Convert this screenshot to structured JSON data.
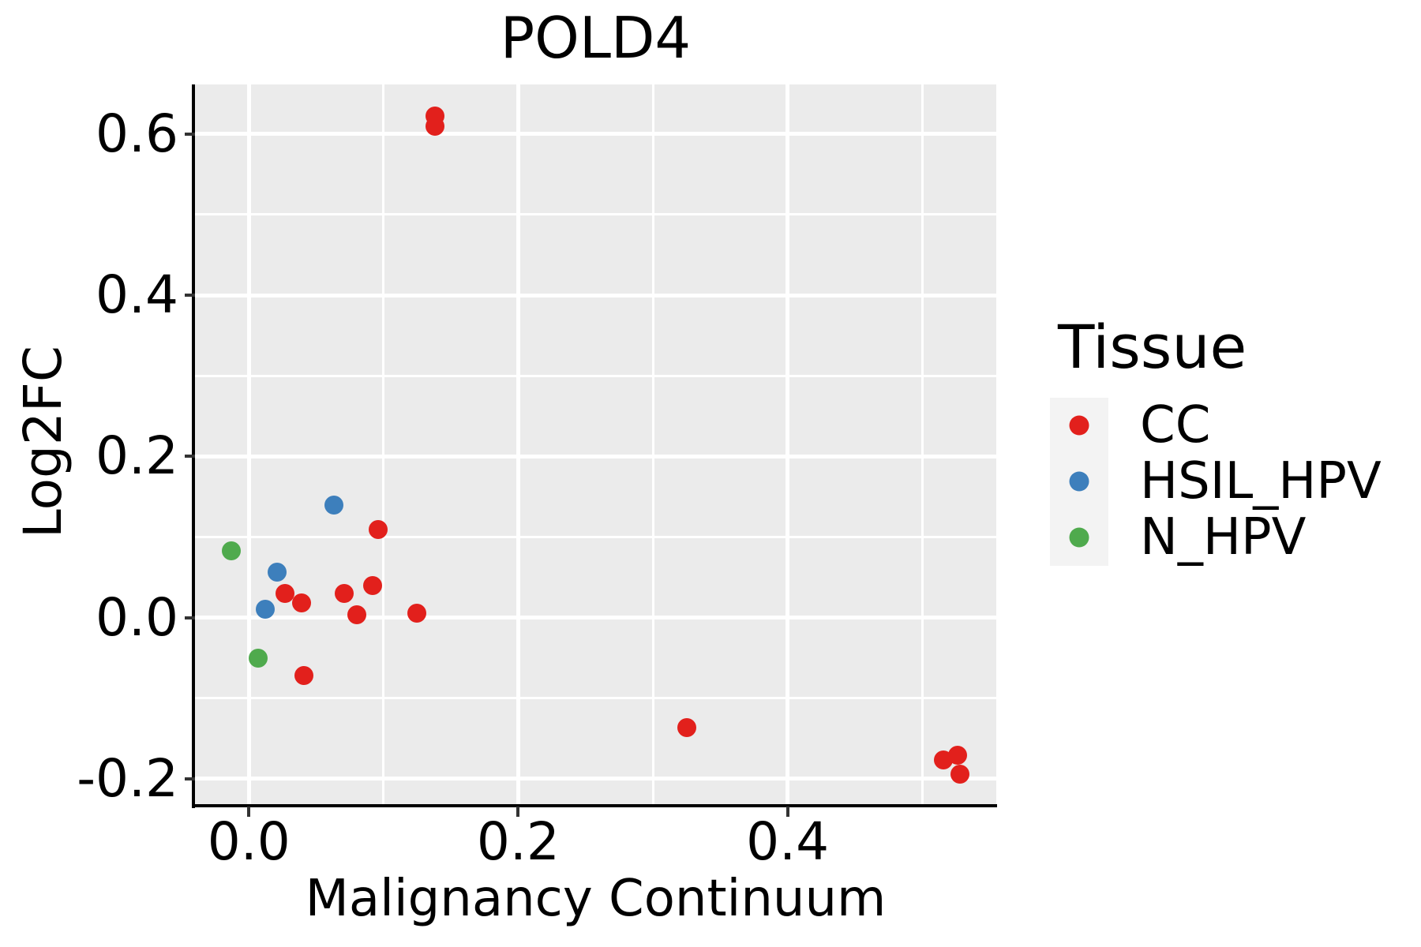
{
  "figure": {
    "title": "POLD4",
    "xlabel": "Malignancy Continuum",
    "ylabel": "Log2FC"
  },
  "legend": {
    "title": "Tissue",
    "items": [
      {
        "label": "CC",
        "color": "#E2201C"
      },
      {
        "label": "HSIL_HPV",
        "color": "#3D7FBC"
      },
      {
        "label": "N_HPV",
        "color": "#4FAA4D"
      }
    ]
  },
  "colors": {
    "panel_background": "#EBEBEB",
    "gridline": "#FFFFFF",
    "axis_line": "#000000",
    "tick_mark": "#333333",
    "legend_key_background": "#F3F3F3",
    "text": "#000000"
  },
  "chart_data": {
    "type": "scatter",
    "title": "POLD4",
    "xlabel": "Malignancy Continuum",
    "ylabel": "Log2FC",
    "xlim": [
      -0.04,
      0.555
    ],
    "ylim": [
      -0.2335,
      0.6615
    ],
    "grid": true,
    "legend_position": "right",
    "legend_title": "Tissue",
    "x_major_ticks": [
      0.0,
      0.2,
      0.4
    ],
    "x_tick_labels": [
      "0.0",
      "0.2",
      "0.4"
    ],
    "x_minor_ticks": [
      0.1,
      0.3,
      0.5
    ],
    "y_major_ticks": [
      -0.2,
      0.0,
      0.2,
      0.4,
      0.6
    ],
    "y_tick_labels": [
      "-0.2",
      "0.0",
      "0.2",
      "0.4",
      "0.6"
    ],
    "y_minor_ticks": [
      -0.1,
      0.1,
      0.3,
      0.5
    ],
    "series": [
      {
        "name": "CC",
        "color": "#E2201C",
        "points": [
          [
            0.138,
            0.622
          ],
          [
            0.138,
            0.61
          ],
          [
            0.096,
            0.109
          ],
          [
            0.027,
            0.03
          ],
          [
            0.039,
            0.018
          ],
          [
            0.071,
            0.03
          ],
          [
            0.092,
            0.04
          ],
          [
            0.08,
            0.003
          ],
          [
            0.125,
            0.005
          ],
          [
            0.041,
            -0.072
          ],
          [
            0.325,
            -0.137
          ],
          [
            0.516,
            -0.177
          ],
          [
            0.526,
            -0.171
          ],
          [
            0.528,
            -0.194
          ]
        ]
      },
      {
        "name": "HSIL_HPV",
        "color": "#3D7FBC",
        "points": [
          [
            0.063,
            0.14
          ],
          [
            0.021,
            0.056
          ],
          [
            0.012,
            0.01
          ]
        ]
      },
      {
        "name": "N_HPV",
        "color": "#4FAA4D",
        "points": [
          [
            -0.013,
            0.083
          ],
          [
            0.007,
            -0.05
          ]
        ]
      }
    ]
  }
}
